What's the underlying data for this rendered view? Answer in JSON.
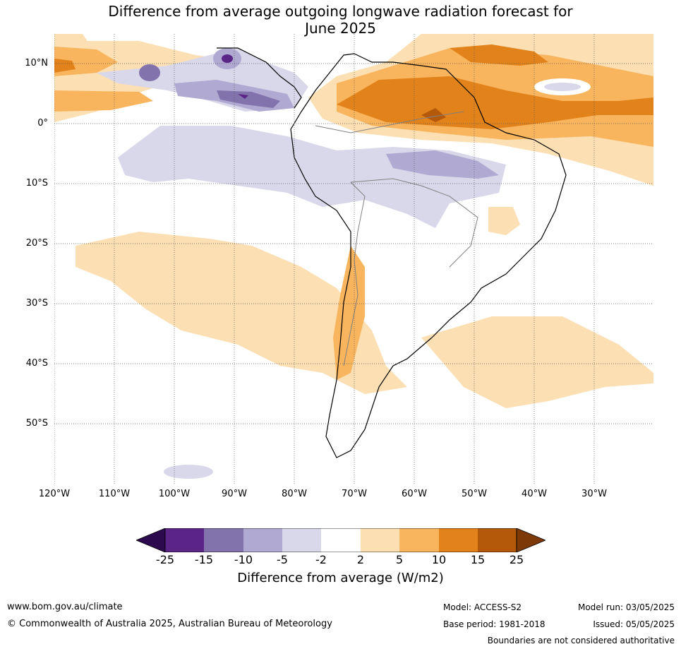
{
  "title": {
    "line1": "Difference from average outgoing longwave radiation forecast for",
    "line2": "June 2025"
  },
  "map": {
    "lat_labels": [
      "10°N",
      "0°",
      "10°S",
      "20°S",
      "30°S",
      "40°S",
      "50°S"
    ],
    "lon_labels": [
      "120°W",
      "110°W",
      "100°W",
      "90°W",
      "80°W",
      "70°W",
      "60°W",
      "50°W",
      "40°W",
      "30°W"
    ]
  },
  "colorbar": {
    "ticks": [
      "-25",
      "-15",
      "-10",
      "-5",
      "-2",
      "2",
      "5",
      "10",
      "15",
      "25"
    ],
    "colors": {
      "below_min": "#2d0a4e",
      "c1": "#5a2586",
      "c2": "#8273ad",
      "c3": "#b0a9d2",
      "c4": "#d9d8ea",
      "c5": "#ffffff",
      "c6": "#fcdfb2",
      "c7": "#f9b55e",
      "c8": "#e2821a",
      "c9": "#b4580a",
      "above_max": "#7d3a08"
    },
    "label": "Difference from average (W/m2)"
  },
  "footer": {
    "website": "www.bom.gov.au/climate",
    "copyright": "© Commonwealth of Australia 2025, Australian Bureau of Meteorology",
    "model": "Model: ACCESS-S2",
    "base_period": "Base period: 1981-2018",
    "model_run": "Model run: 03/05/2025",
    "issued": "Issued: 05/05/2025",
    "boundaries_note": "Boundaries are not considered authoritative"
  }
}
